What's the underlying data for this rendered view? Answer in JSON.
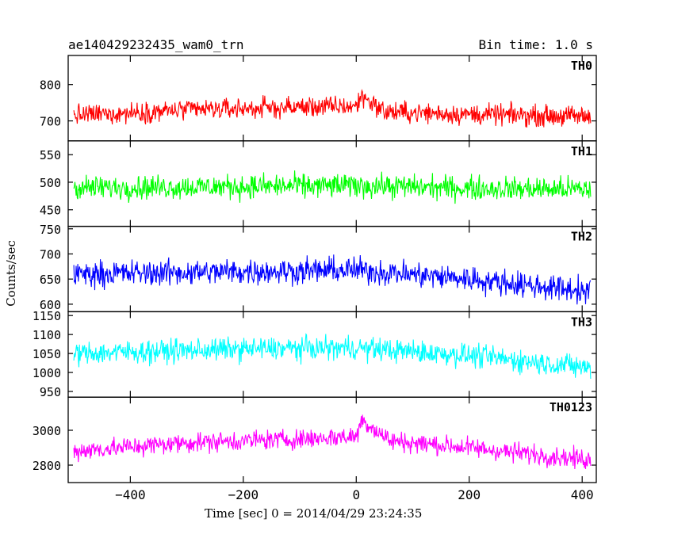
{
  "header": {
    "title": "ae140429232435_wam0_trn",
    "bin_time": "Bin time: 1.0 s"
  },
  "chart_data": {
    "type": "line",
    "title": "ae140429232435_wam0_trn",
    "subtitle": "Bin time: 1.0 s",
    "xlabel": "Time [sec] 0 = 2014/04/29 23:24:35",
    "ylabel": "Counts/sec",
    "xlim": [
      -510,
      425
    ],
    "x_range": [
      -500,
      415
    ],
    "bin_time_s": 1.0,
    "xticks": [
      -400,
      -200,
      0,
      200,
      400
    ],
    "xtick_labels": [
      "−400",
      "−200",
      "0",
      "200",
      "400"
    ],
    "grid": false,
    "legend": "none; series names printed top-right inside each panel",
    "panels": [
      {
        "name": "TH0",
        "color": "#ff0000",
        "ylim": [
          645,
          880
        ],
        "yticks": [
          700,
          800
        ],
        "ytick_labels": [
          "700",
          "800"
        ],
        "trend": {
          "x": [
            -500,
            -300,
            -100,
            0,
            10,
            50,
            200,
            415
          ],
          "y": [
            715,
            730,
            738,
            740,
            770,
            725,
            718,
            712
          ]
        },
        "noise_amplitude": 42
      },
      {
        "name": "TH1",
        "color": "#00ff00",
        "ylim": [
          420,
          575
        ],
        "yticks": [
          450,
          500,
          550
        ],
        "ytick_labels": [
          "450",
          "500",
          "550"
        ],
        "trend": {
          "x": [
            -500,
            -200,
            0,
            200,
            415
          ],
          "y": [
            490,
            492,
            494,
            489,
            487
          ]
        },
        "noise_amplitude": 32
      },
      {
        "name": "TH2",
        "color": "#0000ff",
        "ylim": [
          585,
          755
        ],
        "yticks": [
          600,
          650,
          700,
          750
        ],
        "ytick_labels": [
          "600",
          "650",
          "700",
          "750"
        ],
        "trend": {
          "x": [
            -500,
            -200,
            0,
            200,
            415
          ],
          "y": [
            660,
            665,
            668,
            650,
            625
          ]
        },
        "noise_amplitude": 38
      },
      {
        "name": "TH3",
        "color": "#00ffff",
        "ylim": [
          935,
          1160
        ],
        "yticks": [
          950,
          1000,
          1050,
          1100,
          1150
        ],
        "ytick_labels": [
          "950",
          "1000",
          "1050",
          "1100",
          "1150"
        ],
        "trend": {
          "x": [
            -500,
            -200,
            0,
            200,
            415
          ],
          "y": [
            1050,
            1062,
            1065,
            1045,
            1012
          ]
        },
        "noise_amplitude": 45
      },
      {
        "name": "TH0123",
        "color": "#ff00ff",
        "ylim": [
          2700,
          3190
        ],
        "yticks": [
          2800,
          3000
        ],
        "ytick_labels": [
          "2800",
          "3000"
        ],
        "trend": {
          "x": [
            -500,
            -300,
            -100,
            0,
            10,
            60,
            200,
            415
          ],
          "y": [
            2880,
            2930,
            2950,
            2965,
            3060,
            2940,
            2900,
            2830
          ]
        },
        "noise_amplitude": 85
      }
    ]
  }
}
